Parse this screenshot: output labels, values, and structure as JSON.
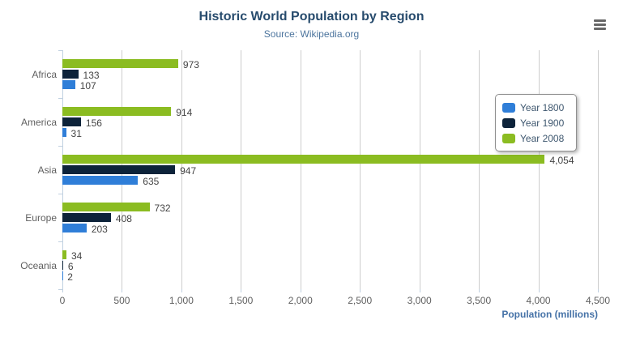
{
  "header": {
    "context_menu_icon": "hamburger-menu-icon"
  },
  "chart_data": {
    "type": "bar",
    "title": "Historic World Population by Region",
    "subtitle": "Source: Wikipedia.org",
    "categories": [
      "Africa",
      "America",
      "Asia",
      "Europe",
      "Oceania"
    ],
    "series": [
      {
        "name": "Year 1800",
        "color": "#2f7ed8",
        "values": [
          107,
          31,
          635,
          203,
          2
        ]
      },
      {
        "name": "Year 1900",
        "color": "#0d233a",
        "values": [
          133,
          156,
          947,
          408,
          6
        ]
      },
      {
        "name": "Year 2008",
        "color": "#8bbc21",
        "values": [
          973,
          914,
          4054,
          732,
          34
        ]
      }
    ],
    "xlabel": "Population (millions)",
    "xlim": [
      0,
      4500
    ],
    "tick_interval": 500,
    "tick_labels": [
      "0",
      "500",
      "1,000",
      "1,500",
      "2,000",
      "2,500",
      "3,000",
      "3,500",
      "4,000",
      "4,500"
    ],
    "grid": true,
    "legend_position": "right-inside",
    "colors": {
      "title": "#274b6d",
      "subtitle": "#4d759e",
      "axis_labels": "#606060",
      "data_labels": "#444444",
      "gridline": "#cdcdcd",
      "axis_line": "#c0d0e0",
      "axis_title": "#4572a7"
    }
  }
}
